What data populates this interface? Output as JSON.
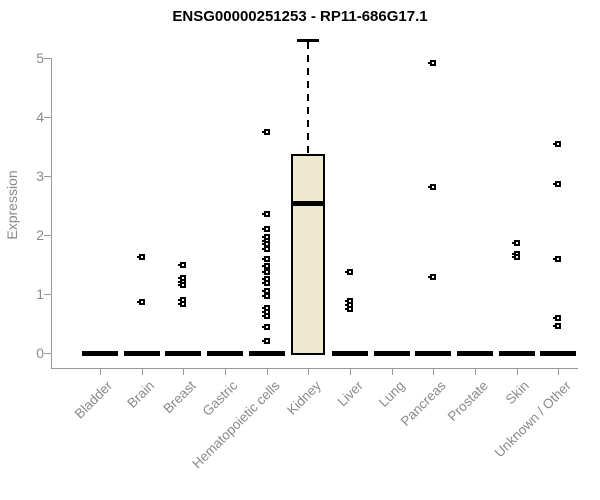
{
  "chart_data": {
    "type": "boxplot",
    "title": "ENSG00000251253 - RP11-686G17.1",
    "ylabel": "Expression",
    "ylim": [
      0,
      5
    ],
    "yticks": [
      0,
      1,
      2,
      3,
      4,
      5
    ],
    "grid": false,
    "legend": false,
    "categories": [
      "Bladder",
      "Brain",
      "Breast",
      "Gastric",
      "Hematopoietic cells",
      "Kidney",
      "Liver",
      "Lung",
      "Pancreas",
      "Prostate",
      "Skin",
      "Unknown / Other"
    ],
    "colors": {
      "box_fill": "#EDE8CE",
      "box_border": "#000000",
      "marker": "#000000",
      "axis": "#999999",
      "tick_text": "#8a8a8a",
      "title_text": "#000000"
    },
    "series": [
      {
        "label": "Bladder",
        "q1": 0,
        "median": 0,
        "q3": 0,
        "whisker_low": 0,
        "whisker_high": 0,
        "outliers": []
      },
      {
        "label": "Brain",
        "q1": 0,
        "median": 0,
        "q3": 0,
        "whisker_low": 0,
        "whisker_high": 0,
        "outliers": [
          1.63,
          0.87
        ]
      },
      {
        "label": "Breast",
        "q1": 0,
        "median": 0,
        "q3": 0,
        "whisker_low": 0,
        "whisker_high": 0,
        "outliers": [
          1.49,
          1.27,
          1.21,
          1.15,
          0.9,
          0.83
        ]
      },
      {
        "label": "Gastric",
        "q1": 0,
        "median": 0,
        "q3": 0,
        "whisker_low": 0,
        "whisker_high": 0,
        "outliers": []
      },
      {
        "label": "Hematopoietic cells",
        "q1": 0,
        "median": 0,
        "q3": 0,
        "whisker_low": 0,
        "whisker_high": 0,
        "outliers": [
          3.75,
          2.36,
          2.11,
          1.96,
          1.9,
          1.84,
          1.77,
          1.59,
          1.47,
          1.38,
          1.26,
          1.18,
          1.05,
          0.96,
          0.76,
          0.69,
          0.62,
          0.44,
          0.2
        ]
      },
      {
        "label": "Kidney",
        "q1": 0,
        "median": 2.55,
        "q3": 3.37,
        "whisker_low": 0,
        "whisker_high": 5.3,
        "outliers": []
      },
      {
        "label": "Liver",
        "q1": 0,
        "median": 0,
        "q3": 0,
        "whisker_low": 0,
        "whisker_high": 0,
        "outliers": [
          1.37,
          0.88,
          0.81,
          0.74
        ]
      },
      {
        "label": "Lung",
        "q1": 0,
        "median": 0,
        "q3": 0,
        "whisker_low": 0,
        "whisker_high": 0,
        "outliers": []
      },
      {
        "label": "Pancreas",
        "q1": 0,
        "median": 0,
        "q3": 0,
        "whisker_low": 0,
        "whisker_high": 0,
        "outliers": [
          4.92,
          2.81,
          1.28
        ]
      },
      {
        "label": "Prostate",
        "q1": 0,
        "median": 0,
        "q3": 0,
        "whisker_low": 0,
        "whisker_high": 0,
        "outliers": []
      },
      {
        "label": "Skin",
        "q1": 0,
        "median": 0,
        "q3": 0,
        "whisker_low": 0,
        "whisker_high": 0,
        "outliers": [
          1.87,
          1.68,
          1.62
        ]
      },
      {
        "label": "Unknown / Other",
        "q1": 0,
        "median": 0,
        "q3": 0,
        "whisker_low": 0,
        "whisker_high": 0,
        "outliers": [
          3.54,
          2.87,
          1.6,
          0.59,
          0.46
        ]
      }
    ]
  }
}
